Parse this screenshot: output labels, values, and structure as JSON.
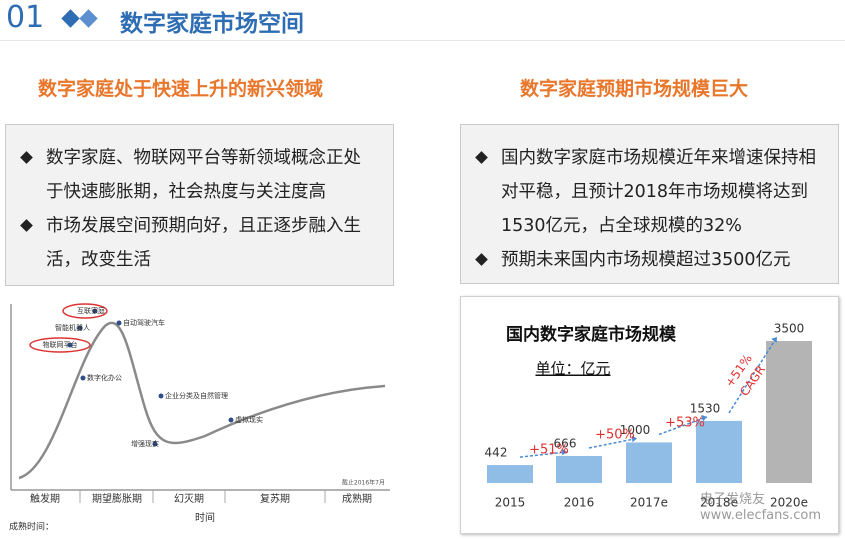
{
  "header": {
    "number": "01",
    "title": "数字家庭市场空间"
  },
  "left": {
    "heading": "数字家庭处于快速上升的新兴领域",
    "bullets": [
      "数字家庭、物联网平台等新领域概念正处于快速膨胀期，社会热度与关注度高",
      "市场发展空间预期向好，且正逐步融入生活，改变生活"
    ]
  },
  "right": {
    "heading": "数字家庭预期市场规模巨大",
    "bullets": [
      "国内数字家庭市场规模近年来增速保持相对平稳，且预计2018年市场规模将达到1530亿元，占全球规模的32%",
      "预期未来国内市场规模超过3500亿元"
    ]
  },
  "hype_cycle": {
    "phases": [
      "触发期",
      "期望膨胀期",
      "幻灭期",
      "复苏期",
      "成熟期"
    ],
    "x_label": "时间",
    "legend_title": "成熟时间：",
    "date_note": "截止2016年7月",
    "items": [
      "互联家庭",
      "物联网平台",
      "智能机器人",
      "自动驾驶汽车",
      "数字化办公",
      "增强现实",
      "虚拟现实",
      "企业分类及自然管理"
    ]
  },
  "chart_data": {
    "type": "bar",
    "title": "国内数字家庭市场规模",
    "subtitle": "单位：亿元",
    "categories": [
      "2015",
      "2016",
      "2017e",
      "2018e",
      "2020e"
    ],
    "values": [
      442,
      666,
      1000,
      1530,
      3500
    ],
    "colors": [
      "#8fbde6",
      "#8fbde6",
      "#8fbde6",
      "#8fbde6",
      "#b4b4b4"
    ],
    "annotations": [
      "+51%",
      "+50%",
      "+53%",
      "+51%",
      "CAGR"
    ]
  },
  "watermark": [
    "电子发烧友",
    "www.elecfans.com"
  ]
}
